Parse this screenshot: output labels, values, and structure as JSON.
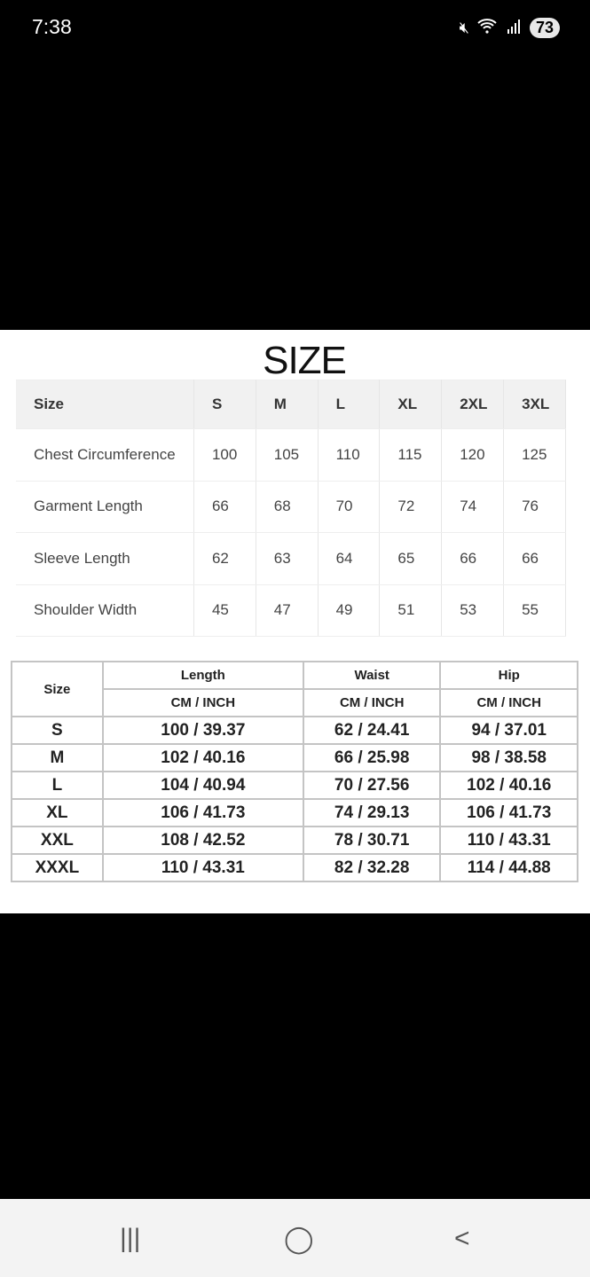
{
  "status": {
    "time": "7:38",
    "battery": "73",
    "icons": [
      "mute-icon",
      "wifi-icon",
      "signal-icon"
    ]
  },
  "chart1": {
    "title": "SIZE",
    "headers": [
      "Size",
      "S",
      "M",
      "L",
      "XL",
      "2XL",
      "3XL"
    ],
    "rows": [
      [
        "Chest Circumference",
        "100",
        "105",
        "110",
        "115",
        "120",
        "125"
      ],
      [
        "Garment Length",
        "66",
        "68",
        "70",
        "72",
        "74",
        "76"
      ],
      [
        "Sleeve Length",
        "62",
        "63",
        "64",
        "65",
        "66",
        "66"
      ],
      [
        "Shoulder Width",
        "45",
        "47",
        "49",
        "51",
        "53",
        "55"
      ]
    ]
  },
  "chart2": {
    "size_label": "Size",
    "columns": [
      "Length",
      "Waist",
      "Hip"
    ],
    "unit": "CM / INCH",
    "rows": [
      [
        "S",
        "100 / 39.37",
        "62 / 24.41",
        "94 / 37.01"
      ],
      [
        "M",
        "102 / 40.16",
        "66 / 25.98",
        "98 / 38.58"
      ],
      [
        "L",
        "104 / 40.94",
        "70 / 27.56",
        "102 / 40.16"
      ],
      [
        "XL",
        "106 / 41.73",
        "74 / 29.13",
        "106 / 41.73"
      ],
      [
        "XXL",
        "108 / 42.52",
        "78 / 30.71",
        "110 / 43.31"
      ],
      [
        "XXXL",
        "110 / 43.31",
        "82 / 32.28",
        "114 / 44.88"
      ]
    ]
  },
  "nav": {
    "recents": "|||",
    "home": "◯",
    "back": "<"
  }
}
